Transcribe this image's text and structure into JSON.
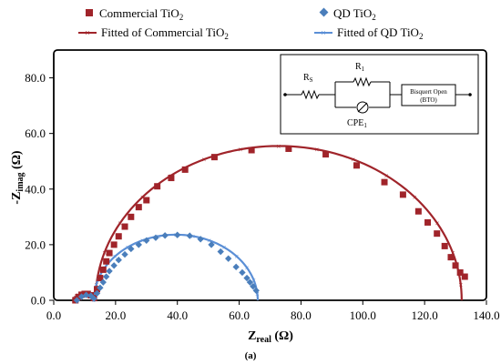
{
  "chart_data": {
    "type": "scatter",
    "panel_label": "(a)",
    "xlabel": "Z",
    "xlabel_sub": "real",
    "xlabel_unit": " (Ω)",
    "ylabel": "-Z",
    "ylabel_sub": "imag",
    "ylabel_unit": " (Ω)",
    "xlim": [
      0,
      140
    ],
    "ylim": [
      0,
      90
    ],
    "x_ticks": [
      0,
      20,
      40,
      60,
      80,
      100,
      120,
      140
    ],
    "x_tick_labels": [
      "0.0",
      "20.0",
      "40.0",
      "60.0",
      "80.0",
      "100.0",
      "120.0",
      "140.0"
    ],
    "y_ticks": [
      0,
      20,
      40,
      60,
      80
    ],
    "y_tick_labels": [
      "0.0",
      "20.0",
      "40.0",
      "60.0",
      "80.0"
    ],
    "grid": false,
    "legend_position": "top, outside plot, two columns",
    "series": [
      {
        "name": "Commercial TiO",
        "name_sub": "2",
        "marker": "square",
        "color": "#a0242a",
        "x": [
          7,
          8,
          9,
          10,
          11,
          12,
          13,
          14,
          15,
          16,
          17,
          18,
          19.5,
          21,
          23,
          25,
          27.5,
          30,
          33.5,
          38,
          42.5,
          52,
          64,
          76,
          88,
          98,
          107,
          113,
          118,
          121,
          124,
          126.5,
          128.5,
          130,
          131.5,
          133
        ],
        "y": [
          0,
          1.2,
          2,
          2.3,
          2.3,
          1.8,
          0.8,
          4,
          8,
          11,
          14,
          17,
          20,
          23,
          26.5,
          30,
          33.5,
          36,
          41,
          44,
          47,
          51.5,
          54,
          54.5,
          52.5,
          48.5,
          42.5,
          38,
          32,
          28,
          24,
          19.5,
          15.5,
          12.5,
          10,
          8.5
        ]
      },
      {
        "name": "QD TiO",
        "name_sub": "2",
        "marker": "diamond",
        "color": "#4a7ebb",
        "x": [
          7.5,
          9,
          10.5,
          12,
          13,
          14,
          15,
          16,
          17,
          18,
          19.5,
          21,
          23,
          25,
          27.5,
          30,
          33,
          36,
          40,
          44,
          47.5,
          51,
          54,
          56.5,
          59,
          61,
          62.5,
          63.5,
          64.5,
          65.5
        ],
        "y": [
          0,
          1.3,
          1.9,
          1.6,
          0.6,
          2.5,
          4.5,
          6.5,
          8.5,
          10.5,
          12.5,
          14.5,
          16.5,
          18.5,
          20,
          21.5,
          22.5,
          23.3,
          23.5,
          23.2,
          22,
          20,
          17.5,
          15,
          12,
          10,
          8,
          6.5,
          5,
          3.5
        ]
      },
      {
        "name": "Fitted of Commercial TiO",
        "name_sub": "2",
        "marker": "line-cross",
        "color": "#a0242a",
        "model": "semicircles",
        "arcs": [
          {
            "x_start": 6.5,
            "x_end": 13.5,
            "height": 2.4
          },
          {
            "x_start": 13.5,
            "x_end": 132,
            "height": 55.5
          }
        ]
      },
      {
        "name": "Fitted of QD TiO",
        "name_sub": "2",
        "marker": "line-cross",
        "color": "#5b8fd6",
        "model": "semicircles",
        "arcs": [
          {
            "x_start": 7,
            "x_end": 13,
            "height": 2.0
          },
          {
            "x_start": 13,
            "x_end": 66,
            "height": 23.6
          }
        ]
      }
    ],
    "inset_circuit": {
      "labels": {
        "rs": "R",
        "rs_sub": "S",
        "r1": "R",
        "r1_sub": "1",
        "cpe": "CPE",
        "cpe_sub": "1",
        "bto_line1": "Bisquert Open",
        "bto_line2": "(BTO)"
      }
    }
  }
}
